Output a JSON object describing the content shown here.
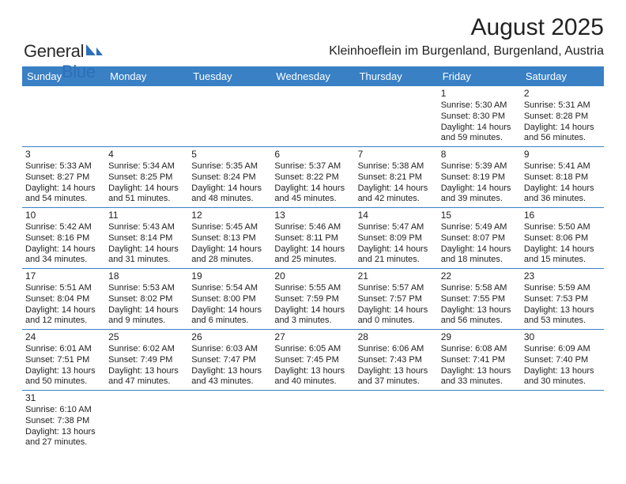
{
  "logo": {
    "text_general": "General",
    "text_blue": "Blue",
    "shape_color": "#2d6fb8"
  },
  "header": {
    "title": "August 2025",
    "location": "Kleinhoeflein im Burgenland, Burgenland, Austria"
  },
  "colors": {
    "header_bg": "#3980c5",
    "header_text": "#ffffff",
    "border": "#3980c5",
    "text": "#222222"
  },
  "day_headers": [
    "Sunday",
    "Monday",
    "Tuesday",
    "Wednesday",
    "Thursday",
    "Friday",
    "Saturday"
  ],
  "weeks": [
    [
      {
        "day": "",
        "lines": []
      },
      {
        "day": "",
        "lines": []
      },
      {
        "day": "",
        "lines": []
      },
      {
        "day": "",
        "lines": []
      },
      {
        "day": "",
        "lines": []
      },
      {
        "day": "1",
        "lines": [
          "Sunrise: 5:30 AM",
          "Sunset: 8:30 PM",
          "Daylight: 14 hours",
          "and 59 minutes."
        ]
      },
      {
        "day": "2",
        "lines": [
          "Sunrise: 5:31 AM",
          "Sunset: 8:28 PM",
          "Daylight: 14 hours",
          "and 56 minutes."
        ]
      }
    ],
    [
      {
        "day": "3",
        "lines": [
          "Sunrise: 5:33 AM",
          "Sunset: 8:27 PM",
          "Daylight: 14 hours",
          "and 54 minutes."
        ]
      },
      {
        "day": "4",
        "lines": [
          "Sunrise: 5:34 AM",
          "Sunset: 8:25 PM",
          "Daylight: 14 hours",
          "and 51 minutes."
        ]
      },
      {
        "day": "5",
        "lines": [
          "Sunrise: 5:35 AM",
          "Sunset: 8:24 PM",
          "Daylight: 14 hours",
          "and 48 minutes."
        ]
      },
      {
        "day": "6",
        "lines": [
          "Sunrise: 5:37 AM",
          "Sunset: 8:22 PM",
          "Daylight: 14 hours",
          "and 45 minutes."
        ]
      },
      {
        "day": "7",
        "lines": [
          "Sunrise: 5:38 AM",
          "Sunset: 8:21 PM",
          "Daylight: 14 hours",
          "and 42 minutes."
        ]
      },
      {
        "day": "8",
        "lines": [
          "Sunrise: 5:39 AM",
          "Sunset: 8:19 PM",
          "Daylight: 14 hours",
          "and 39 minutes."
        ]
      },
      {
        "day": "9",
        "lines": [
          "Sunrise: 5:41 AM",
          "Sunset: 8:18 PM",
          "Daylight: 14 hours",
          "and 36 minutes."
        ]
      }
    ],
    [
      {
        "day": "10",
        "lines": [
          "Sunrise: 5:42 AM",
          "Sunset: 8:16 PM",
          "Daylight: 14 hours",
          "and 34 minutes."
        ]
      },
      {
        "day": "11",
        "lines": [
          "Sunrise: 5:43 AM",
          "Sunset: 8:14 PM",
          "Daylight: 14 hours",
          "and 31 minutes."
        ]
      },
      {
        "day": "12",
        "lines": [
          "Sunrise: 5:45 AM",
          "Sunset: 8:13 PM",
          "Daylight: 14 hours",
          "and 28 minutes."
        ]
      },
      {
        "day": "13",
        "lines": [
          "Sunrise: 5:46 AM",
          "Sunset: 8:11 PM",
          "Daylight: 14 hours",
          "and 25 minutes."
        ]
      },
      {
        "day": "14",
        "lines": [
          "Sunrise: 5:47 AM",
          "Sunset: 8:09 PM",
          "Daylight: 14 hours",
          "and 21 minutes."
        ]
      },
      {
        "day": "15",
        "lines": [
          "Sunrise: 5:49 AM",
          "Sunset: 8:07 PM",
          "Daylight: 14 hours",
          "and 18 minutes."
        ]
      },
      {
        "day": "16",
        "lines": [
          "Sunrise: 5:50 AM",
          "Sunset: 8:06 PM",
          "Daylight: 14 hours",
          "and 15 minutes."
        ]
      }
    ],
    [
      {
        "day": "17",
        "lines": [
          "Sunrise: 5:51 AM",
          "Sunset: 8:04 PM",
          "Daylight: 14 hours",
          "and 12 minutes."
        ]
      },
      {
        "day": "18",
        "lines": [
          "Sunrise: 5:53 AM",
          "Sunset: 8:02 PM",
          "Daylight: 14 hours",
          "and 9 minutes."
        ]
      },
      {
        "day": "19",
        "lines": [
          "Sunrise: 5:54 AM",
          "Sunset: 8:00 PM",
          "Daylight: 14 hours",
          "and 6 minutes."
        ]
      },
      {
        "day": "20",
        "lines": [
          "Sunrise: 5:55 AM",
          "Sunset: 7:59 PM",
          "Daylight: 14 hours",
          "and 3 minutes."
        ]
      },
      {
        "day": "21",
        "lines": [
          "Sunrise: 5:57 AM",
          "Sunset: 7:57 PM",
          "Daylight: 14 hours",
          "and 0 minutes."
        ]
      },
      {
        "day": "22",
        "lines": [
          "Sunrise: 5:58 AM",
          "Sunset: 7:55 PM",
          "Daylight: 13 hours",
          "and 56 minutes."
        ]
      },
      {
        "day": "23",
        "lines": [
          "Sunrise: 5:59 AM",
          "Sunset: 7:53 PM",
          "Daylight: 13 hours",
          "and 53 minutes."
        ]
      }
    ],
    [
      {
        "day": "24",
        "lines": [
          "Sunrise: 6:01 AM",
          "Sunset: 7:51 PM",
          "Daylight: 13 hours",
          "and 50 minutes."
        ]
      },
      {
        "day": "25",
        "lines": [
          "Sunrise: 6:02 AM",
          "Sunset: 7:49 PM",
          "Daylight: 13 hours",
          "and 47 minutes."
        ]
      },
      {
        "day": "26",
        "lines": [
          "Sunrise: 6:03 AM",
          "Sunset: 7:47 PM",
          "Daylight: 13 hours",
          "and 43 minutes."
        ]
      },
      {
        "day": "27",
        "lines": [
          "Sunrise: 6:05 AM",
          "Sunset: 7:45 PM",
          "Daylight: 13 hours",
          "and 40 minutes."
        ]
      },
      {
        "day": "28",
        "lines": [
          "Sunrise: 6:06 AM",
          "Sunset: 7:43 PM",
          "Daylight: 13 hours",
          "and 37 minutes."
        ]
      },
      {
        "day": "29",
        "lines": [
          "Sunrise: 6:08 AM",
          "Sunset: 7:41 PM",
          "Daylight: 13 hours",
          "and 33 minutes."
        ]
      },
      {
        "day": "30",
        "lines": [
          "Sunrise: 6:09 AM",
          "Sunset: 7:40 PM",
          "Daylight: 13 hours",
          "and 30 minutes."
        ]
      }
    ],
    [
      {
        "day": "31",
        "lines": [
          "Sunrise: 6:10 AM",
          "Sunset: 7:38 PM",
          "Daylight: 13 hours",
          "and 27 minutes."
        ]
      },
      {
        "day": "",
        "lines": []
      },
      {
        "day": "",
        "lines": []
      },
      {
        "day": "",
        "lines": []
      },
      {
        "day": "",
        "lines": []
      },
      {
        "day": "",
        "lines": []
      },
      {
        "day": "",
        "lines": []
      }
    ]
  ]
}
